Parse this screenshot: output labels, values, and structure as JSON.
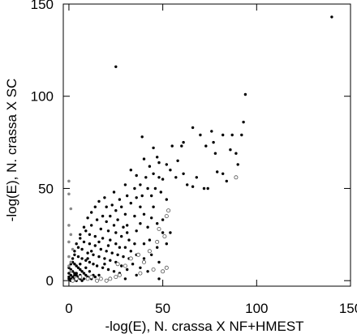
{
  "chart_data": {
    "type": "scatter",
    "xlabel": "-log(E), N. crassa X NF+HMEST",
    "ylabel": "-log(E), N. crassa X SC",
    "xlim": [
      -3,
      150
    ],
    "ylim": [
      -3,
      150
    ],
    "xticks": [
      "0",
      "50",
      "100",
      "150"
    ],
    "yticks": [
      "0",
      "50",
      "100",
      "150"
    ],
    "grid": false,
    "series": [
      {
        "marker": "filled-black",
        "points": [
          [
            140,
            143
          ],
          [
            25,
            116
          ],
          [
            94,
            101
          ],
          [
            93,
            86
          ],
          [
            76,
            81
          ],
          [
            66,
            83
          ],
          [
            82,
            79
          ],
          [
            87,
            79
          ],
          [
            92,
            79
          ],
          [
            70,
            79
          ],
          [
            77,
            75
          ],
          [
            73,
            73
          ],
          [
            61,
            75
          ],
          [
            60,
            73
          ],
          [
            55,
            73
          ],
          [
            86,
            71
          ],
          [
            78,
            69
          ],
          [
            89,
            69
          ],
          [
            39,
            78
          ],
          [
            45,
            72
          ],
          [
            47,
            67
          ],
          [
            40,
            66
          ],
          [
            58,
            65
          ],
          [
            48,
            64
          ],
          [
            43,
            62
          ],
          [
            52,
            63
          ],
          [
            54,
            60
          ],
          [
            45,
            58
          ],
          [
            41,
            56
          ],
          [
            48,
            56
          ],
          [
            36,
            57
          ],
          [
            33,
            60
          ],
          [
            50,
            55
          ],
          [
            38,
            52
          ],
          [
            35,
            50
          ],
          [
            30,
            52
          ],
          [
            42,
            50
          ],
          [
            46,
            50
          ],
          [
            31,
            46
          ],
          [
            36,
            45
          ],
          [
            24,
            48
          ],
          [
            27,
            44
          ],
          [
            33,
            42
          ],
          [
            38,
            40
          ],
          [
            28,
            40
          ],
          [
            23,
            41
          ],
          [
            20,
            40
          ],
          [
            25,
            38
          ],
          [
            30,
            36
          ],
          [
            35,
            35
          ],
          [
            22,
            35
          ],
          [
            18,
            35
          ],
          [
            26,
            33
          ],
          [
            31,
            30
          ],
          [
            40,
            36
          ],
          [
            45,
            40
          ],
          [
            52,
            44
          ],
          [
            44,
            46
          ],
          [
            49,
            48
          ],
          [
            39,
            46
          ],
          [
            63,
            52
          ],
          [
            66,
            51
          ],
          [
            72,
            50
          ],
          [
            68,
            56
          ],
          [
            61,
            58
          ],
          [
            57,
            56
          ],
          [
            82,
            58
          ],
          [
            84,
            54
          ],
          [
            74,
            50
          ],
          [
            90,
            63
          ],
          [
            79,
            59
          ],
          [
            20,
            32
          ],
          [
            15,
            33
          ],
          [
            12,
            30
          ],
          [
            17,
            28
          ],
          [
            21,
            27
          ],
          [
            25,
            26
          ],
          [
            28,
            24
          ],
          [
            32,
            22
          ],
          [
            36,
            27
          ],
          [
            38,
            31
          ],
          [
            42,
            29
          ],
          [
            44,
            34
          ],
          [
            47,
            31
          ],
          [
            50,
            33
          ],
          [
            29,
            29
          ],
          [
            9,
            27
          ],
          [
            11,
            25
          ],
          [
            14,
            24
          ],
          [
            18,
            23
          ],
          [
            22,
            22
          ],
          [
            25,
            20
          ],
          [
            30,
            18
          ],
          [
            33,
            16
          ],
          [
            35,
            20
          ],
          [
            40,
            20
          ],
          [
            43,
            22
          ],
          [
            47,
            18
          ],
          [
            52,
            20
          ],
          [
            54,
            26
          ],
          [
            50,
            26
          ],
          [
            6,
            23
          ],
          [
            8,
            21
          ],
          [
            11,
            20
          ],
          [
            14,
            19
          ],
          [
            17,
            17
          ],
          [
            20,
            16
          ],
          [
            23,
            15
          ],
          [
            26,
            14
          ],
          [
            29,
            13
          ],
          [
            32,
            12
          ],
          [
            36,
            14
          ],
          [
            40,
            12
          ],
          [
            44,
            14
          ],
          [
            48,
            10
          ],
          [
            5,
            18
          ],
          [
            7,
            17
          ],
          [
            10,
            15
          ],
          [
            13,
            14
          ],
          [
            16,
            13
          ],
          [
            19,
            12
          ],
          [
            22,
            11
          ],
          [
            25,
            10
          ],
          [
            28,
            8
          ],
          [
            31,
            6
          ],
          [
            34,
            9
          ],
          [
            38,
            7
          ],
          [
            42,
            5
          ],
          [
            3,
            14
          ],
          [
            5,
            13
          ],
          [
            7,
            12
          ],
          [
            9,
            11
          ],
          [
            11,
            10
          ],
          [
            13,
            9
          ],
          [
            15,
            8
          ],
          [
            18,
            7
          ],
          [
            21,
            6
          ],
          [
            24,
            5
          ],
          [
            27,
            4
          ],
          [
            2,
            10
          ],
          [
            3,
            9
          ],
          [
            4,
            8
          ],
          [
            5,
            7
          ],
          [
            6,
            6
          ],
          [
            7,
            5
          ],
          [
            8,
            4
          ],
          [
            9,
            3
          ],
          [
            10,
            2
          ],
          [
            12,
            1
          ],
          [
            14,
            2
          ],
          [
            16,
            3
          ],
          [
            1,
            6
          ],
          [
            2,
            5
          ],
          [
            3,
            4
          ],
          [
            4,
            3
          ],
          [
            5,
            2
          ],
          [
            6,
            1
          ],
          [
            7,
            0
          ],
          [
            8,
            1
          ],
          [
            1,
            3
          ],
          [
            2,
            2
          ],
          [
            3,
            1
          ],
          [
            4,
            0
          ],
          [
            0,
            1
          ],
          [
            1,
            0
          ],
          [
            0,
            2
          ],
          [
            2,
            0
          ],
          [
            1,
            1
          ],
          [
            3,
            3
          ],
          [
            0,
            4
          ],
          [
            4,
            4
          ],
          [
            6,
            3
          ],
          [
            0,
            7
          ],
          [
            1,
            9
          ],
          [
            2,
            12
          ],
          [
            3,
            16
          ],
          [
            4,
            20
          ],
          [
            6,
            25
          ],
          [
            8,
            29
          ],
          [
            10,
            34
          ],
          [
            12,
            37
          ],
          [
            14,
            40
          ],
          [
            16,
            43
          ],
          [
            19,
            45
          ],
          [
            48,
            1
          ],
          [
            36,
            3
          ],
          [
            30,
            1
          ],
          [
            27,
            18
          ],
          [
            31,
            26
          ],
          [
            11,
            5
          ],
          [
            9,
            7
          ],
          [
            19,
            9
          ],
          [
            21,
            19
          ],
          [
            24,
            30
          ],
          [
            16,
            21
          ],
          [
            12,
            16
          ],
          [
            10,
            12
          ],
          [
            6,
            9
          ],
          [
            13,
            3
          ]
        ]
      },
      {
        "marker": "open-circle",
        "points": [
          [
            89,
            56
          ],
          [
            53,
            38
          ],
          [
            52,
            35
          ],
          [
            48,
            28
          ],
          [
            51,
            24
          ],
          [
            52,
            7
          ],
          [
            50,
            5
          ],
          [
            40,
            10
          ],
          [
            37,
            14
          ],
          [
            33,
            12
          ],
          [
            30,
            8
          ],
          [
            27,
            3
          ],
          [
            25,
            2
          ],
          [
            22,
            1
          ],
          [
            20,
            0
          ],
          [
            17,
            1
          ],
          [
            15,
            0
          ],
          [
            12,
            2
          ],
          [
            10,
            1
          ],
          [
            6,
            2
          ],
          [
            4,
            1
          ],
          [
            2,
            0
          ],
          [
            47,
            21
          ],
          [
            43,
            16
          ],
          [
            26,
            9
          ],
          [
            38,
            4
          ],
          [
            45,
            6
          ]
        ]
      },
      {
        "marker": "gray-dot",
        "points": [
          [
            0,
            54
          ],
          [
            0,
            47
          ],
          [
            1,
            39
          ],
          [
            0,
            30
          ],
          [
            1,
            25
          ],
          [
            0,
            21
          ],
          [
            2,
            17
          ],
          [
            0,
            13
          ],
          [
            1,
            10
          ],
          [
            0,
            8
          ],
          [
            1,
            5
          ]
        ]
      }
    ]
  }
}
